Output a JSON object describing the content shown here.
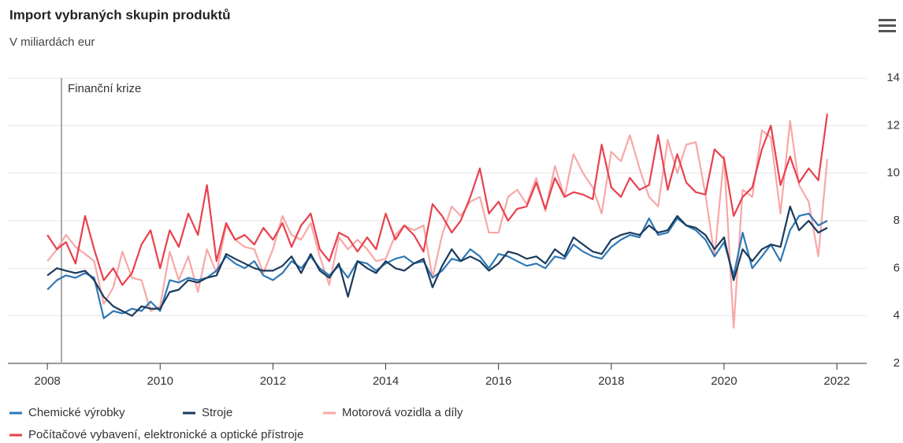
{
  "chart_data": {
    "type": "line",
    "title": "Import vybraných skupin produktů",
    "subtitle": "V miliardách eur",
    "annotation": {
      "x": 2008.25,
      "label": "Finanční krize"
    },
    "xlim": [
      2007.3,
      2022.53
    ],
    "xticks": [
      2008,
      2010,
      2012,
      2014,
      2016,
      2018,
      2020,
      2022
    ],
    "ylim": [
      2,
      14
    ],
    "yticks": [
      2,
      4,
      6,
      8,
      10,
      12,
      14
    ],
    "grid": true,
    "legend": "bottom",
    "x": [
      2008,
      2008.17,
      2008.33,
      2008.5,
      2008.67,
      2008.83,
      2009,
      2009.17,
      2009.33,
      2009.5,
      2009.67,
      2009.83,
      2010,
      2010.17,
      2010.33,
      2010.5,
      2010.67,
      2010.83,
      2011,
      2011.17,
      2011.33,
      2011.5,
      2011.67,
      2011.83,
      2012,
      2012.17,
      2012.33,
      2012.5,
      2012.67,
      2012.83,
      2013,
      2013.17,
      2013.33,
      2013.5,
      2013.67,
      2013.83,
      2014,
      2014.17,
      2014.33,
      2014.5,
      2014.67,
      2014.83,
      2015,
      2015.17,
      2015.33,
      2015.5,
      2015.67,
      2015.83,
      2016,
      2016.17,
      2016.33,
      2016.5,
      2016.67,
      2016.83,
      2017,
      2017.17,
      2017.33,
      2017.5,
      2017.67,
      2017.83,
      2018,
      2018.17,
      2018.33,
      2018.5,
      2018.67,
      2018.83,
      2019,
      2019.17,
      2019.33,
      2019.5,
      2019.67,
      2019.83,
      2020,
      2020.17,
      2020.33,
      2020.5,
      2020.67,
      2020.83,
      2021,
      2021.17,
      2021.33,
      2021.5,
      2021.67,
      2021.83
    ],
    "series": [
      {
        "name": "Chemické výrobky",
        "color": "#2f77b5",
        "values": [
          5.1,
          5.5,
          5.7,
          5.6,
          5.8,
          5.6,
          3.9,
          4.2,
          4.1,
          4.3,
          4.2,
          4.6,
          4.2,
          5.5,
          5.4,
          5.6,
          5.5,
          5.6,
          5.9,
          6.5,
          6.2,
          6.0,
          6.3,
          5.7,
          5.5,
          5.8,
          6.3,
          6.0,
          6.5,
          6.0,
          5.7,
          6.1,
          5.6,
          6.3,
          6.2,
          5.9,
          6.2,
          6.4,
          6.5,
          6.2,
          6.3,
          5.6,
          5.9,
          6.4,
          6.3,
          6.8,
          6.5,
          6.0,
          6.6,
          6.5,
          6.3,
          6.1,
          6.2,
          6.0,
          6.5,
          6.4,
          7.0,
          6.7,
          6.5,
          6.4,
          6.9,
          7.2,
          7.4,
          7.3,
          8.1,
          7.4,
          7.5,
          8.1,
          7.8,
          7.6,
          7.2,
          6.5,
          7.1,
          5.7,
          7.5,
          6.0,
          6.5,
          7.0,
          6.3,
          7.6,
          8.2,
          8.3,
          7.8,
          8.0
        ]
      },
      {
        "name": "Stroje",
        "color": "#1a3a5c",
        "values": [
          5.7,
          6.0,
          5.9,
          5.8,
          5.9,
          5.5,
          4.8,
          4.4,
          4.2,
          4.0,
          4.4,
          4.3,
          4.3,
          5.0,
          5.1,
          5.5,
          5.4,
          5.6,
          5.7,
          6.6,
          6.4,
          6.2,
          6.0,
          5.9,
          5.9,
          6.1,
          6.5,
          5.8,
          6.6,
          5.9,
          5.6,
          6.2,
          4.8,
          6.3,
          6.0,
          5.8,
          6.3,
          6.0,
          5.9,
          6.2,
          6.4,
          5.2,
          6.1,
          6.8,
          6.3,
          6.5,
          6.3,
          5.9,
          6.2,
          6.7,
          6.6,
          6.4,
          6.5,
          6.2,
          6.8,
          6.5,
          7.3,
          7.0,
          6.7,
          6.6,
          7.2,
          7.4,
          7.5,
          7.4,
          7.8,
          7.5,
          7.6,
          8.2,
          7.8,
          7.7,
          7.4,
          6.8,
          7.3,
          5.5,
          6.8,
          6.3,
          6.8,
          7.0,
          6.9,
          8.6,
          7.6,
          8.0,
          7.5,
          7.7
        ]
      },
      {
        "name": "Motorová vozidla a díly",
        "color": "#f7a8a8",
        "values": [
          6.3,
          6.8,
          7.4,
          6.9,
          6.6,
          6.3,
          4.5,
          5.2,
          6.7,
          5.6,
          5.5,
          4.2,
          4.4,
          6.7,
          5.5,
          6.5,
          5.0,
          6.8,
          5.8,
          7.8,
          7.2,
          6.9,
          6.8,
          5.8,
          6.8,
          8.2,
          7.4,
          7.2,
          7.9,
          6.5,
          5.3,
          7.3,
          6.8,
          7.2,
          6.8,
          6.3,
          6.4,
          7.4,
          7.8,
          7.6,
          7.8,
          5.6,
          7.4,
          8.6,
          8.2,
          8.8,
          9.0,
          7.5,
          7.5,
          9.0,
          9.3,
          8.7,
          9.8,
          8.4,
          10.3,
          9.0,
          10.8,
          10.0,
          9.4,
          8.3,
          10.9,
          10.5,
          11.6,
          10.2,
          9.0,
          8.6,
          11.4,
          10.0,
          11.2,
          11.3,
          9.1,
          6.5,
          10.7,
          3.5,
          9.3,
          9.0,
          11.8,
          11.5,
          8.3,
          12.2,
          9.5,
          8.8,
          6.5,
          10.6
        ]
      },
      {
        "name": "Počítačové vybavení, elektronické a optické přístroje",
        "color": "#e8414d",
        "values": [
          7.4,
          6.8,
          7.1,
          6.2,
          8.2,
          6.8,
          5.5,
          6.0,
          5.3,
          5.8,
          7.0,
          7.6,
          6.0,
          7.6,
          6.9,
          8.3,
          7.4,
          9.5,
          6.3,
          7.9,
          7.2,
          7.4,
          7.0,
          7.7,
          7.2,
          7.9,
          6.9,
          7.8,
          8.3,
          6.8,
          6.3,
          7.5,
          7.3,
          6.7,
          7.3,
          6.8,
          8.3,
          7.2,
          7.8,
          7.4,
          6.7,
          8.7,
          8.2,
          7.5,
          8.0,
          9.0,
          10.2,
          8.3,
          8.8,
          8.0,
          8.5,
          8.6,
          9.6,
          8.5,
          9.8,
          9.0,
          9.2,
          9.1,
          8.9,
          11.2,
          9.4,
          9.0,
          9.8,
          9.3,
          9.5,
          11.6,
          9.3,
          10.8,
          9.6,
          9.2,
          9.1,
          11.0,
          10.6,
          8.2,
          9.0,
          9.4,
          11.0,
          12.0,
          9.5,
          10.7,
          9.6,
          10.2,
          9.7,
          12.5
        ]
      }
    ]
  }
}
